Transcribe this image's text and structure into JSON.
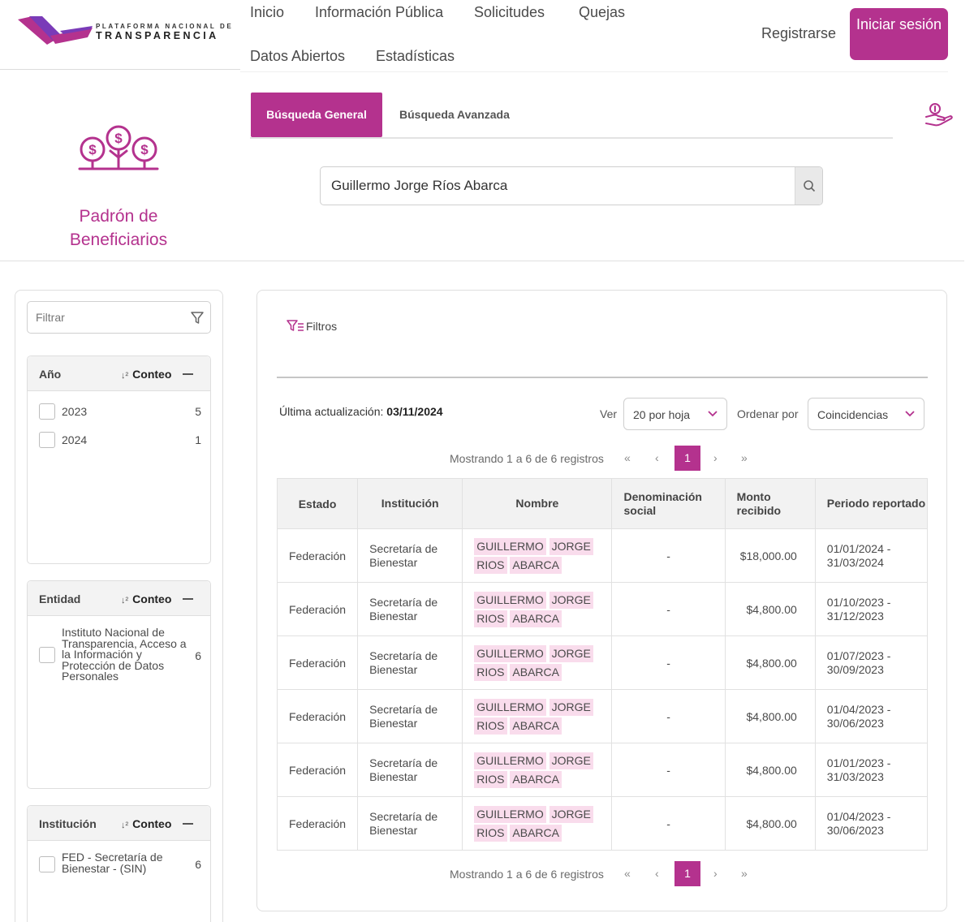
{
  "brand": {
    "line1": "PLATAFORMA NACIONAL DE",
    "line2": "TRANSPARENCIA",
    "colors": {
      "primary": "#b4328e",
      "purple": "#7a3bb8",
      "highlight": "#f9dcec"
    }
  },
  "nav": {
    "items": [
      "Inicio",
      "Información Pública",
      "Solicitudes",
      "Quejas",
      "Datos Abiertos",
      "Estadísticas"
    ],
    "register": "Registrarse",
    "login": "Iniciar sesión"
  },
  "hero": {
    "title": "Padrón de Beneficiarios",
    "icon": "money-trees-icon"
  },
  "tabs": [
    "Búsqueda General",
    "Búsqueda Avanzada"
  ],
  "search": {
    "value": "Guillermo Jorge Ríos Abarca",
    "icon": "search-icon"
  },
  "sidebar": {
    "filter_placeholder": "Filtrar",
    "sort_label": "Conteo",
    "facets": [
      {
        "title": "Año",
        "items": [
          {
            "label": "2023",
            "count": "5"
          },
          {
            "label": "2024",
            "count": "1"
          }
        ]
      },
      {
        "title": "Entidad",
        "items": [
          {
            "label": "Instituto Nacional de Transparencia, Acceso a la Información y Protección de Datos Personales",
            "count": "6"
          }
        ]
      },
      {
        "title": "Institución",
        "items": [
          {
            "label": "FED - Secretaría de Bienestar - (SIN)",
            "count": "6"
          }
        ]
      }
    ]
  },
  "main": {
    "filters_label": "Filtros",
    "updated_label": "Última actualización:",
    "updated_value": "03/11/2024",
    "ver_label": "Ver",
    "per_page": "20 por hoja",
    "order_label": "Ordenar por",
    "order_value": "Coincidencias",
    "showing": "Mostrando 1 a 6 de 6 registros",
    "current_page": "1",
    "pager_icons": {
      "first": "«",
      "prev": "‹",
      "next": "›",
      "last": "»"
    }
  },
  "table": {
    "headers": [
      "Estado",
      "Institución",
      "Nombre",
      "Denominación social",
      "Monto recibido",
      "Periodo reportado"
    ],
    "rows": [
      {
        "estado": "Federación",
        "institucion": "Secretaría de Bienestar",
        "nombre": [
          "GUILLERMO",
          "JORGE",
          "RIOS",
          "ABARCA"
        ],
        "denominacion": "-",
        "monto": "$18,000.00",
        "periodo": "01/01/2024 - 31/03/2024"
      },
      {
        "estado": "Federación",
        "institucion": "Secretaría de Bienestar",
        "nombre": [
          "GUILLERMO",
          "JORGE",
          "RIOS",
          "ABARCA"
        ],
        "denominacion": "-",
        "monto": "$4,800.00",
        "periodo": "01/10/2023 - 31/12/2023"
      },
      {
        "estado": "Federación",
        "institucion": "Secretaría de Bienestar",
        "nombre": [
          "GUILLERMO",
          "JORGE",
          "RIOS",
          "ABARCA"
        ],
        "denominacion": "-",
        "monto": "$4,800.00",
        "periodo": "01/07/2023 - 30/09/2023"
      },
      {
        "estado": "Federación",
        "institucion": "Secretaría de Bienestar",
        "nombre": [
          "GUILLERMO",
          "JORGE",
          "RIOS",
          "ABARCA"
        ],
        "denominacion": "-",
        "monto": "$4,800.00",
        "periodo": "01/04/2023 - 30/06/2023"
      },
      {
        "estado": "Federación",
        "institucion": "Secretaría de Bienestar",
        "nombre": [
          "GUILLERMO",
          "JORGE",
          "RIOS",
          "ABARCA"
        ],
        "denominacion": "-",
        "monto": "$4,800.00",
        "periodo": "01/01/2023 - 31/03/2023"
      },
      {
        "estado": "Federación",
        "institucion": "Secretaría de Bienestar",
        "nombre": [
          "GUILLERMO",
          "JORGE",
          "RIOS",
          "ABARCA"
        ],
        "denominacion": "-",
        "monto": "$4,800.00",
        "periodo": "01/04/2023 - 30/06/2023"
      }
    ]
  }
}
